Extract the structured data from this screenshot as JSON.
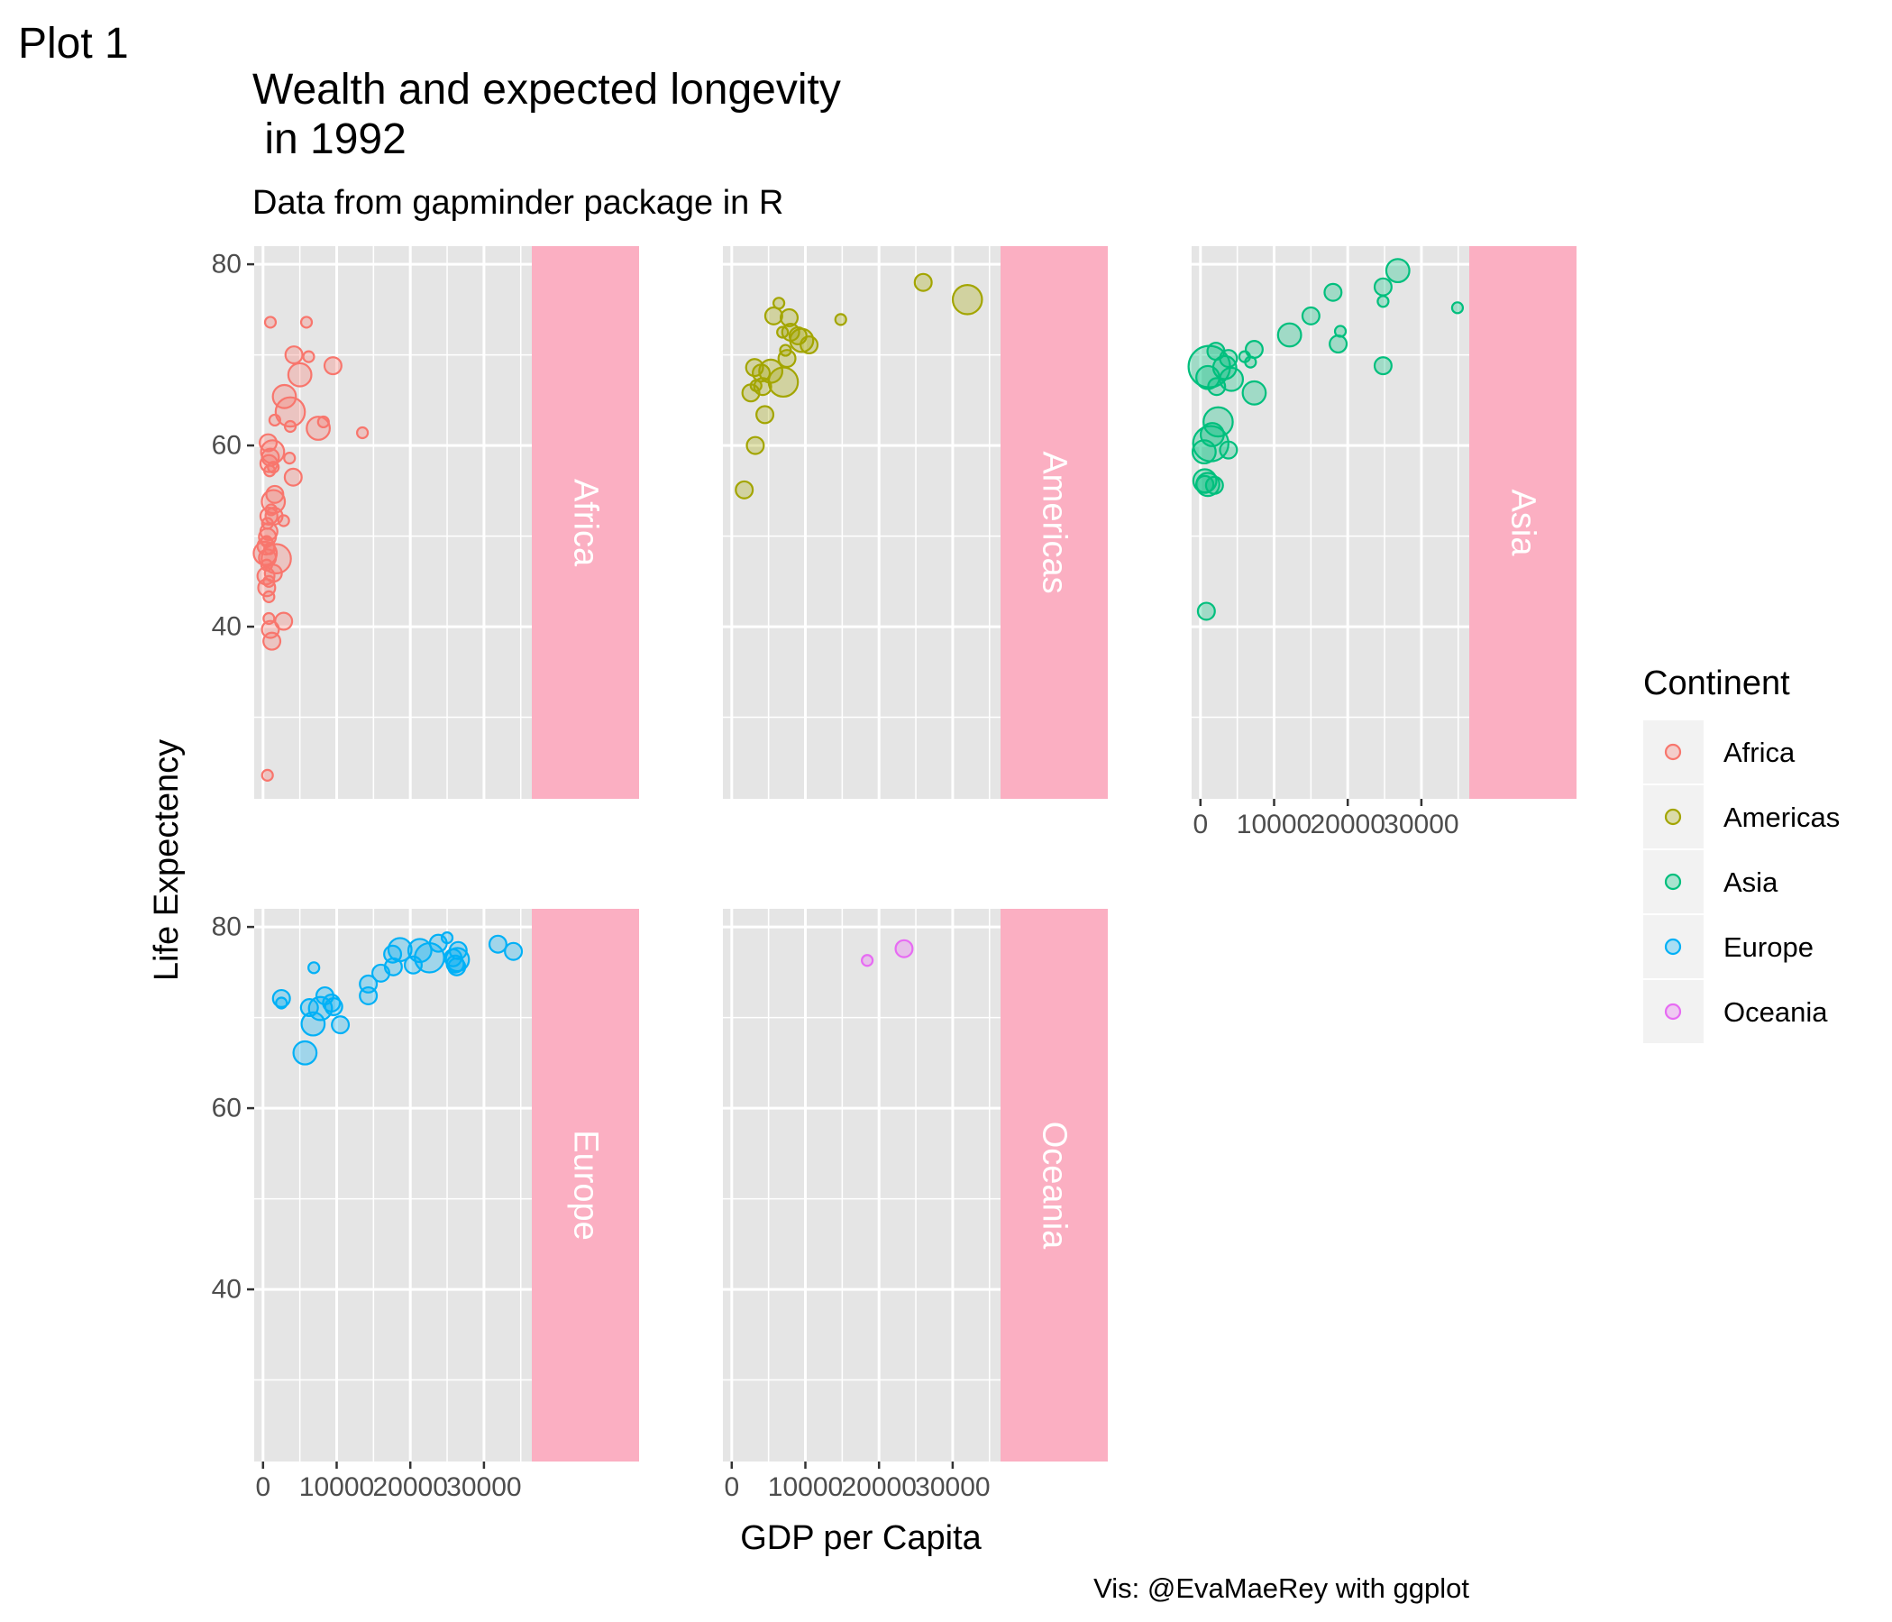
{
  "tag": "Plot 1",
  "title_lines": [
    "Wealth and expected longevity",
    " in 1992"
  ],
  "subtitle": "Data from gapminder package in R",
  "caption": "Vis: @EvaMaeRey with ggplot",
  "colors": {
    "Africa": "#F8766D",
    "Americas": "#A3A500",
    "Asia": "#00BF7D",
    "Europe": "#00B0F6",
    "Oceania": "#E76BF3",
    "panel_background": "#E5E5E5",
    "grid": "#FFFFFF",
    "strip_background": "#FBAFC2",
    "strip_text": "#FFFFFF"
  },
  "chart_data": {
    "type": "scatter",
    "facet_by": "continent",
    "facet_strip_position": "right",
    "xlabel": "GDP per Capita",
    "ylabel": "Life Expectency",
    "xlim": [
      -1200,
      36500
    ],
    "ylim": [
      21,
      82
    ],
    "x_ticks": [
      0,
      10000,
      20000,
      30000
    ],
    "y_ticks": [
      40,
      60,
      80
    ],
    "grid": true,
    "point_size_encodes": "population",
    "legend": {
      "title": "Continent",
      "position": "right",
      "entries": [
        "Africa",
        "Americas",
        "Asia",
        "Europe",
        "Oceania"
      ]
    },
    "facets": [
      {
        "name": "Africa",
        "points": [
          {
            "x": 600,
            "y": 23.6,
            "s": 1
          },
          {
            "x": 1000,
            "y": 73.6,
            "s": 1
          },
          {
            "x": 5900,
            "y": 73.6,
            "s": 1
          },
          {
            "x": 4200,
            "y": 70,
            "s": 2
          },
          {
            "x": 6200,
            "y": 69.8,
            "s": 1
          },
          {
            "x": 9500,
            "y": 68.8,
            "s": 2
          },
          {
            "x": 5000,
            "y": 67.8,
            "s": 3
          },
          {
            "x": 2900,
            "y": 65.4,
            "s": 3
          },
          {
            "x": 3700,
            "y": 63.7,
            "s": 4
          },
          {
            "x": 8200,
            "y": 62.6,
            "s": 1
          },
          {
            "x": 7500,
            "y": 61.9,
            "s": 3
          },
          {
            "x": 1600,
            "y": 62.8,
            "s": 1
          },
          {
            "x": 3700,
            "y": 62.1,
            "s": 1
          },
          {
            "x": 13500,
            "y": 61.4,
            "s": 1
          },
          {
            "x": 700,
            "y": 60.3,
            "s": 2
          },
          {
            "x": 1300,
            "y": 59.3,
            "s": 3
          },
          {
            "x": 1000,
            "y": 58.7,
            "s": 2
          },
          {
            "x": 3600,
            "y": 58.6,
            "s": 1
          },
          {
            "x": 800,
            "y": 58,
            "s": 2
          },
          {
            "x": 1400,
            "y": 57.6,
            "s": 1
          },
          {
            "x": 900,
            "y": 57.2,
            "s": 1
          },
          {
            "x": 4100,
            "y": 56.5,
            "s": 2
          },
          {
            "x": 1600,
            "y": 54.6,
            "s": 2
          },
          {
            "x": 1400,
            "y": 53.8,
            "s": 3
          },
          {
            "x": 1100,
            "y": 52.9,
            "s": 1
          },
          {
            "x": 800,
            "y": 52.2,
            "s": 2
          },
          {
            "x": 1500,
            "y": 52.2,
            "s": 2
          },
          {
            "x": 2800,
            "y": 51.7,
            "s": 1
          },
          {
            "x": 600,
            "y": 51.4,
            "s": 1
          },
          {
            "x": 800,
            "y": 50.5,
            "s": 2
          },
          {
            "x": 600,
            "y": 49.9,
            "s": 2
          },
          {
            "x": 500,
            "y": 49.4,
            "s": 1
          },
          {
            "x": 400,
            "y": 48.9,
            "s": 2
          },
          {
            "x": 900,
            "y": 48.6,
            "s": 1
          },
          {
            "x": 300,
            "y": 48.1,
            "s": 3
          },
          {
            "x": 600,
            "y": 47.6,
            "s": 2
          },
          {
            "x": 1800,
            "y": 47.5,
            "s": 4
          },
          {
            "x": 500,
            "y": 46.8,
            "s": 1
          },
          {
            "x": 400,
            "y": 45.6,
            "s": 2
          },
          {
            "x": 1400,
            "y": 45.9,
            "s": 2
          },
          {
            "x": 800,
            "y": 45,
            "s": 1
          },
          {
            "x": 500,
            "y": 44.3,
            "s": 2
          },
          {
            "x": 800,
            "y": 43.3,
            "s": 1
          },
          {
            "x": 800,
            "y": 40.9,
            "s": 1
          },
          {
            "x": 2800,
            "y": 40.6,
            "s": 2
          },
          {
            "x": 1000,
            "y": 39.7,
            "s": 2
          },
          {
            "x": 1200,
            "y": 38.4,
            "s": 2
          }
        ]
      },
      {
        "name": "Americas",
        "points": [
          {
            "x": 26000,
            "y": 78,
            "s": 2
          },
          {
            "x": 32000,
            "y": 76.1,
            "s": 4
          },
          {
            "x": 6400,
            "y": 75.7,
            "s": 1
          },
          {
            "x": 14800,
            "y": 73.9,
            "s": 1
          },
          {
            "x": 5700,
            "y": 74.3,
            "s": 2
          },
          {
            "x": 7800,
            "y": 74.1,
            "s": 2
          },
          {
            "x": 8000,
            "y": 72.5,
            "s": 2
          },
          {
            "x": 6900,
            "y": 72.5,
            "s": 1
          },
          {
            "x": 9000,
            "y": 72.1,
            "s": 2
          },
          {
            "x": 9500,
            "y": 71.6,
            "s": 3
          },
          {
            "x": 10500,
            "y": 71.1,
            "s": 2
          },
          {
            "x": 7300,
            "y": 70.5,
            "s": 1
          },
          {
            "x": 7500,
            "y": 69.6,
            "s": 2
          },
          {
            "x": 3100,
            "y": 68.6,
            "s": 2
          },
          {
            "x": 4000,
            "y": 68,
            "s": 2
          },
          {
            "x": 5300,
            "y": 68.2,
            "s": 3
          },
          {
            "x": 7000,
            "y": 67,
            "s": 4
          },
          {
            "x": 4200,
            "y": 66.5,
            "s": 2
          },
          {
            "x": 3300,
            "y": 66.6,
            "s": 1
          },
          {
            "x": 2600,
            "y": 65.8,
            "s": 2
          },
          {
            "x": 4500,
            "y": 63.4,
            "s": 2
          },
          {
            "x": 3200,
            "y": 60,
            "s": 2
          },
          {
            "x": 1700,
            "y": 55.1,
            "s": 2
          }
        ]
      },
      {
        "name": "Asia",
        "points": [
          {
            "x": 26800,
            "y": 79.3,
            "s": 3
          },
          {
            "x": 18000,
            "y": 76.9,
            "s": 2
          },
          {
            "x": 24800,
            "y": 77.5,
            "s": 2
          },
          {
            "x": 24800,
            "y": 75.9,
            "s": 1
          },
          {
            "x": 34900,
            "y": 75.2,
            "s": 1
          },
          {
            "x": 15000,
            "y": 74.3,
            "s": 2
          },
          {
            "x": 19000,
            "y": 72.6,
            "s": 1
          },
          {
            "x": 12100,
            "y": 72.2,
            "s": 3
          },
          {
            "x": 18700,
            "y": 71.2,
            "s": 2
          },
          {
            "x": 7300,
            "y": 70.6,
            "s": 2
          },
          {
            "x": 2100,
            "y": 70.4,
            "s": 2
          },
          {
            "x": 6000,
            "y": 69.8,
            "s": 1
          },
          {
            "x": 3800,
            "y": 69.6,
            "s": 2
          },
          {
            "x": 6800,
            "y": 69.2,
            "s": 1
          },
          {
            "x": 1200,
            "y": 68.7,
            "s": 6
          },
          {
            "x": 3300,
            "y": 68.6,
            "s": 3
          },
          {
            "x": 24800,
            "y": 68.8,
            "s": 2
          },
          {
            "x": 4200,
            "y": 67.3,
            "s": 3
          },
          {
            "x": 1000,
            "y": 67.5,
            "s": 3
          },
          {
            "x": 2200,
            "y": 66.5,
            "s": 2
          },
          {
            "x": 7300,
            "y": 65.8,
            "s": 3
          },
          {
            "x": 2400,
            "y": 62.6,
            "s": 4
          },
          {
            "x": 1600,
            "y": 61.2,
            "s": 3
          },
          {
            "x": 1400,
            "y": 60.2,
            "s": 5
          },
          {
            "x": 500,
            "y": 59.3,
            "s": 3
          },
          {
            "x": 3800,
            "y": 59.5,
            "s": 2
          },
          {
            "x": 600,
            "y": 56.1,
            "s": 3
          },
          {
            "x": 600,
            "y": 55.7,
            "s": 2
          },
          {
            "x": 1000,
            "y": 55.7,
            "s": 3
          },
          {
            "x": 1900,
            "y": 55.6,
            "s": 2
          },
          {
            "x": 800,
            "y": 41.7,
            "s": 2
          }
        ]
      },
      {
        "name": "Europe",
        "points": [
          {
            "x": 25000,
            "y": 78.8,
            "s": 1
          },
          {
            "x": 23800,
            "y": 78.2,
            "s": 2
          },
          {
            "x": 31900,
            "y": 78.1,
            "s": 2
          },
          {
            "x": 18600,
            "y": 77.5,
            "s": 3
          },
          {
            "x": 21300,
            "y": 77.4,
            "s": 3
          },
          {
            "x": 26500,
            "y": 77.4,
            "s": 2
          },
          {
            "x": 34000,
            "y": 77.3,
            "s": 2
          },
          {
            "x": 17600,
            "y": 77,
            "s": 2
          },
          {
            "x": 22600,
            "y": 76.6,
            "s": 4
          },
          {
            "x": 25800,
            "y": 76.6,
            "s": 2
          },
          {
            "x": 26400,
            "y": 76.4,
            "s": 3
          },
          {
            "x": 26100,
            "y": 75.9,
            "s": 2
          },
          {
            "x": 20400,
            "y": 75.8,
            "s": 2
          },
          {
            "x": 26300,
            "y": 75.6,
            "s": 2
          },
          {
            "x": 17700,
            "y": 75.6,
            "s": 2
          },
          {
            "x": 6900,
            "y": 75.5,
            "s": 1
          },
          {
            "x": 16000,
            "y": 74.9,
            "s": 2
          },
          {
            "x": 14300,
            "y": 73.7,
            "s": 2
          },
          {
            "x": 14300,
            "y": 72.4,
            "s": 2
          },
          {
            "x": 8400,
            "y": 72.4,
            "s": 2
          },
          {
            "x": 2500,
            "y": 72.1,
            "s": 2
          },
          {
            "x": 9300,
            "y": 71.6,
            "s": 2
          },
          {
            "x": 2500,
            "y": 71.6,
            "s": 1
          },
          {
            "x": 9600,
            "y": 71.2,
            "s": 2
          },
          {
            "x": 7800,
            "y": 71,
            "s": 3
          },
          {
            "x": 6300,
            "y": 71.1,
            "s": 2
          },
          {
            "x": 10500,
            "y": 69.2,
            "s": 2
          },
          {
            "x": 6800,
            "y": 69.3,
            "s": 3
          },
          {
            "x": 5700,
            "y": 66.1,
            "s": 3
          }
        ]
      },
      {
        "name": "Oceania",
        "points": [
          {
            "x": 18400,
            "y": 76.3,
            "s": 1
          },
          {
            "x": 23400,
            "y": 77.6,
            "s": 2
          }
        ]
      }
    ]
  }
}
